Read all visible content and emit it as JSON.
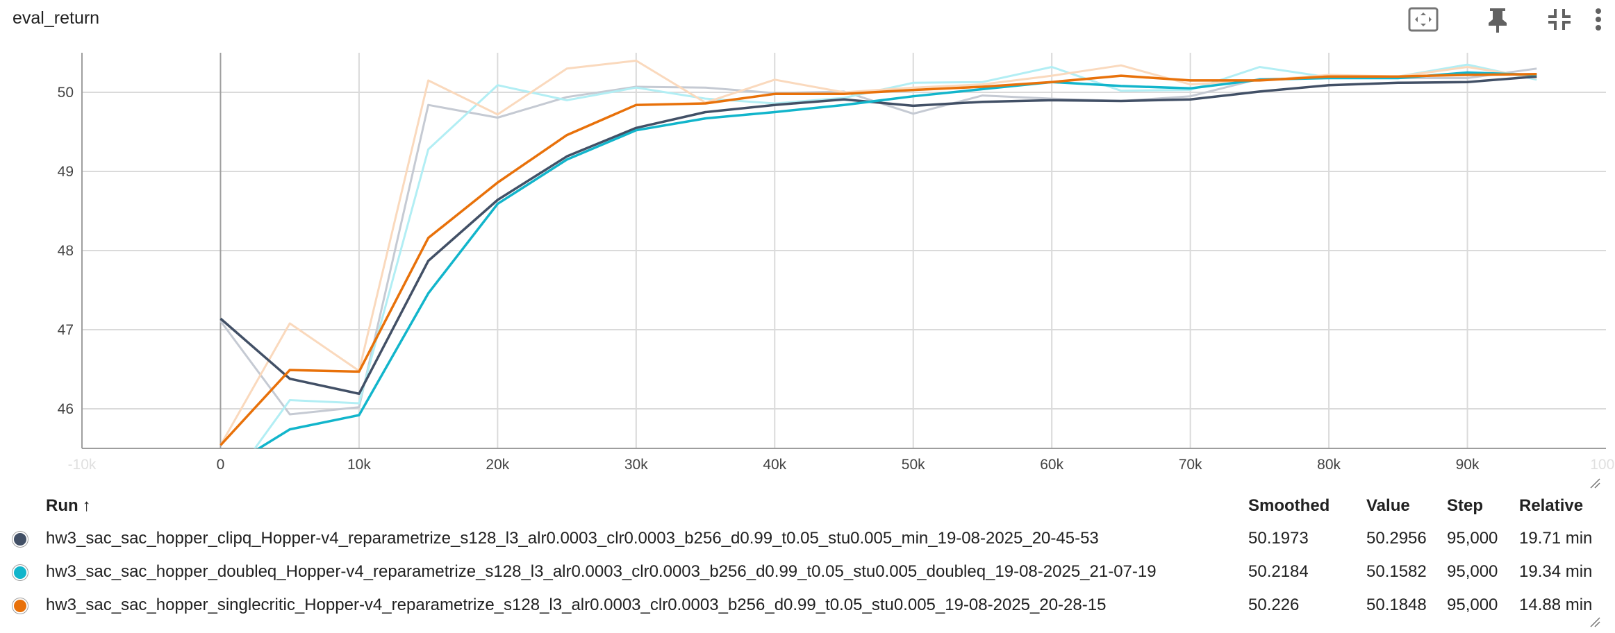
{
  "header": {
    "title": "eval_return",
    "actions": [
      {
        "name": "fit-domain-button",
        "icon": "fit-to-data-icon"
      },
      {
        "name": "pin-button",
        "icon": "pin-icon"
      },
      {
        "name": "collapse-button",
        "icon": "collapse-icon"
      },
      {
        "name": "more-button",
        "icon": "more-vert-icon"
      }
    ]
  },
  "chart_data": {
    "type": "line",
    "title": "eval_return",
    "xlabel": "",
    "ylabel": "",
    "xlim": [
      -10000,
      100000
    ],
    "ylim": [
      45.5,
      50.5
    ],
    "xticks": [
      "-10k",
      "0",
      "10k",
      "20k",
      "30k",
      "40k",
      "50k",
      "60k",
      "70k",
      "80k",
      "90k",
      "100k"
    ],
    "xtick_values": [
      -10000,
      0,
      10000,
      20000,
      30000,
      40000,
      50000,
      60000,
      70000,
      80000,
      90000,
      100000
    ],
    "yticks": [
      "46",
      "47",
      "48",
      "49",
      "50"
    ],
    "ytick_values": [
      46,
      47,
      48,
      49,
      50
    ],
    "grid": true,
    "x": [
      0,
      5000,
      10000,
      15000,
      20000,
      25000,
      30000,
      35000,
      40000,
      45000,
      50000,
      55000,
      60000,
      65000,
      70000,
      75000,
      80000,
      85000,
      90000,
      95000
    ],
    "series": [
      {
        "name": "hw3_sac_sac_hopper_clipq_Hopper-v4_reparametrize_s128_l3_alr0.0003_clr0.0003_b256_d0.99_t0.05_stu0.005_min_19-08-2025_20-45-53",
        "color": "#425066",
        "raw_color": "#c5cad3",
        "smoothed": [
          47.14,
          46.38,
          46.19,
          47.87,
          48.64,
          49.19,
          49.55,
          49.75,
          49.84,
          49.91,
          49.83,
          49.88,
          49.9,
          49.89,
          49.91,
          50.01,
          50.09,
          50.12,
          50.13,
          50.2
        ],
        "values": [
          47.11,
          45.93,
          46.02,
          49.84,
          49.68,
          49.94,
          50.07,
          50.06,
          49.99,
          50.01,
          49.73,
          49.96,
          49.92,
          49.89,
          49.95,
          50.17,
          50.18,
          50.18,
          50.18,
          50.3
        ]
      },
      {
        "name": "hw3_sac_sac_hopper_doubleq_Hopper-v4_reparametrize_s128_l3_alr0.0003_clr0.0003_b256_d0.99_t0.05_stu0.005_doubleq_19-08-2025_21-07-19",
        "color": "#12b5cb",
        "raw_color": "#b2eef4",
        "smoothed": [
          45.2,
          45.74,
          45.92,
          47.46,
          48.59,
          49.15,
          49.52,
          49.67,
          49.75,
          49.84,
          49.95,
          50.04,
          50.13,
          50.08,
          50.05,
          50.16,
          50.18,
          50.18,
          50.25,
          50.22
        ],
        "values": [
          44.9,
          46.11,
          46.07,
          49.28,
          50.09,
          49.9,
          50.06,
          49.92,
          49.86,
          49.93,
          50.12,
          50.13,
          50.32,
          50.02,
          50.03,
          50.32,
          50.19,
          50.2,
          50.35,
          50.16
        ]
      },
      {
        "name": "hw3_sac_sac_hopper_singlecritic_Hopper-v4_reparametrize_s128_l3_alr0.0003_clr0.0003_b256_d0.99_t0.05_stu0.005_19-08-2025_20-28-15",
        "color": "#e8710a",
        "raw_color": "#fad9bd",
        "smoothed": [
          45.54,
          46.49,
          46.47,
          48.16,
          48.86,
          49.46,
          49.84,
          49.86,
          49.98,
          49.98,
          50.03,
          50.07,
          50.13,
          50.21,
          50.15,
          50.15,
          50.2,
          50.2,
          50.22,
          50.23
        ],
        "values": [
          45.54,
          47.08,
          46.48,
          50.15,
          49.72,
          50.3,
          50.4,
          49.87,
          50.16,
          50.0,
          50.06,
          50.1,
          50.21,
          50.34,
          50.1,
          50.15,
          50.22,
          50.2,
          50.32,
          50.18
        ]
      }
    ]
  },
  "runs_table": {
    "headers": {
      "run": "Run",
      "sort_arrow": "↑",
      "smoothed": "Smoothed",
      "value": "Value",
      "step": "Step",
      "relative": "Relative"
    },
    "rows": [
      {
        "color": "#425066",
        "name": "hw3_sac_sac_hopper_clipq_Hopper-v4_reparametrize_s128_l3_alr0.0003_clr0.0003_b256_d0.99_t0.05_stu0.005_min_19-08-2025_20-45-53",
        "smoothed": "50.1973",
        "value": "50.2956",
        "step": "95,000",
        "relative": "19.71 min"
      },
      {
        "color": "#12b5cb",
        "name": "hw3_sac_sac_hopper_doubleq_Hopper-v4_reparametrize_s128_l3_alr0.0003_clr0.0003_b256_d0.99_t0.05_stu0.005_doubleq_19-08-2025_21-07-19",
        "smoothed": "50.2184",
        "value": "50.1582",
        "step": "95,000",
        "relative": "19.34 min"
      },
      {
        "color": "#e8710a",
        "name": "hw3_sac_sac_hopper_singlecritic_Hopper-v4_reparametrize_s128_l3_alr0.0003_clr0.0003_b256_d0.99_t0.05_stu0.005_19-08-2025_20-28-15",
        "smoothed": "50.226",
        "value": "50.1848",
        "step": "95,000",
        "relative": "14.88 min"
      }
    ]
  }
}
